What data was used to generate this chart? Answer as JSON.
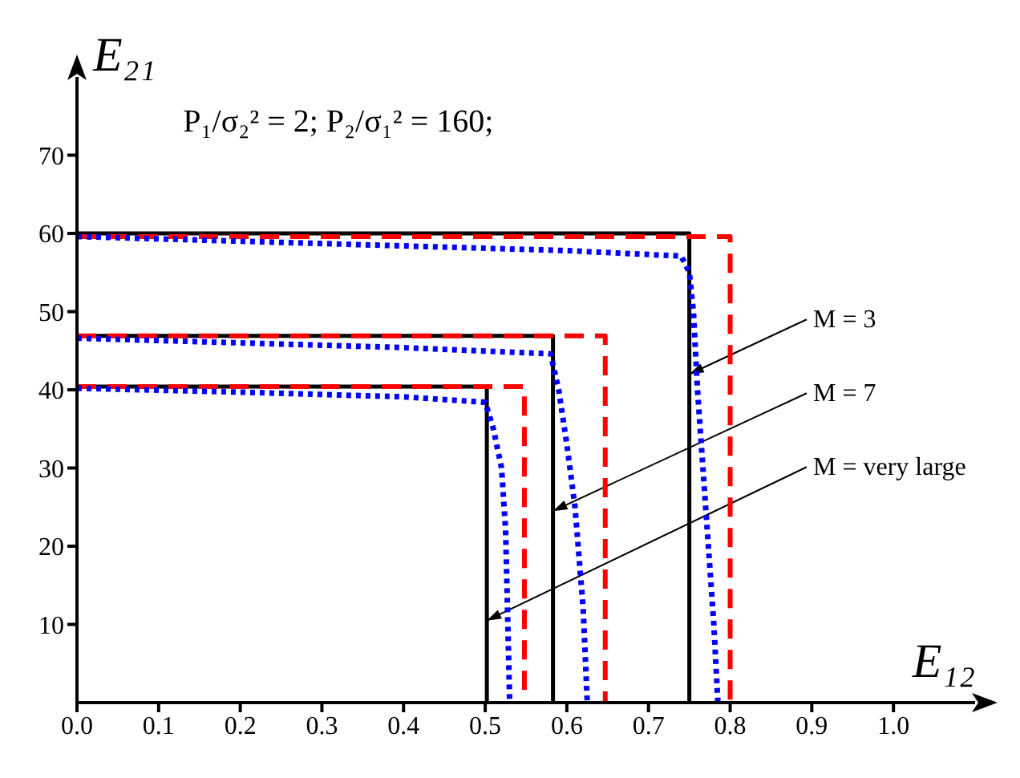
{
  "chart_data": {
    "type": "line",
    "title": "P₁/σ₂² = 2;  P₂/σ₁² = 160;",
    "xlabel": "E₁₂",
    "ylabel": "E₂₁",
    "xlim": [
      0,
      1.1
    ],
    "ylim": [
      0,
      80
    ],
    "xticks": [
      {
        "value": 0,
        "label": "0.0"
      },
      0.1,
      0.2,
      0.3,
      0.4,
      0.5,
      0.6,
      0.7,
      0.8,
      0.9,
      {
        "value": 1,
        "label": "1.0"
      }
    ],
    "yticks": [
      10,
      20,
      30,
      40,
      50,
      60,
      70
    ],
    "marker": "none",
    "series": [
      {
        "color": "#000000",
        "line_style": "solid",
        "x": [
          0,
          0.75,
          0.75
        ],
        "values": [
          60,
          60,
          0
        ]
      },
      {
        "color": "#ff0000",
        "line_style": "dashed",
        "x": [
          0,
          0.8,
          0.8
        ],
        "values": [
          59.6,
          59.6,
          0
        ]
      },
      {
        "color": "#0000ff",
        "line_style": "dotted",
        "x": [
          0,
          0.2,
          0.4,
          0.6,
          0.74,
          0.75,
          0.755,
          0.76,
          0.77,
          0.78,
          0.785
        ],
        "values": [
          59.6,
          59,
          58.4,
          57.8,
          57.1,
          55,
          50,
          40,
          25,
          10,
          0
        ]
      },
      {
        "color": "#000000",
        "line_style": "solid",
        "x": [
          0,
          0.583,
          0.583
        ],
        "values": [
          46.9,
          46.9,
          0
        ]
      },
      {
        "color": "#ff0000",
        "line_style": "dashed",
        "x": [
          0,
          0.647,
          0.647
        ],
        "values": [
          46.9,
          46.9,
          0
        ]
      },
      {
        "color": "#0000ff",
        "line_style": "dotted",
        "x": [
          0,
          0.2,
          0.4,
          0.58,
          0.59,
          0.6,
          0.61,
          0.62,
          0.625
        ],
        "values": [
          46.6,
          46,
          45.4,
          44.6,
          40,
          33,
          25,
          12,
          0
        ]
      },
      {
        "color": "#000000",
        "line_style": "solid",
        "x": [
          0,
          0.502,
          0.502
        ],
        "values": [
          40.4,
          40.4,
          0
        ]
      },
      {
        "color": "#ff0000",
        "line_style": "dashed",
        "x": [
          0,
          0.548,
          0.548
        ],
        "values": [
          40.4,
          40.4,
          0
        ]
      },
      {
        "color": "#0000ff",
        "line_style": "dotted",
        "x": [
          0,
          0.2,
          0.4,
          0.5,
          0.51,
          0.52,
          0.525,
          0.53
        ],
        "values": [
          40.2,
          39.7,
          39.1,
          38.4,
          35,
          30,
          22,
          0
        ]
      }
    ],
    "annotations": [
      {
        "text": "M = 3",
        "x": 0.75,
        "y": 42
      },
      {
        "text": "M = 7",
        "x": 0.583,
        "y": 24.5
      },
      {
        "text": "M = very large",
        "x": 0.502,
        "y": 10.5
      }
    ]
  }
}
